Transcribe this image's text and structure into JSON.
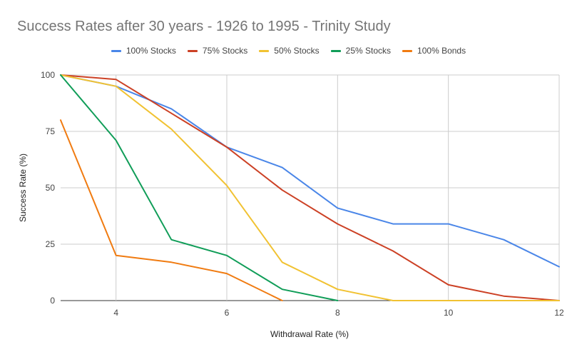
{
  "chart_data": {
    "type": "line",
    "title": "Success Rates after 30 years - 1926 to 1995 - Trinity Study",
    "xlabel": "Withdrawal Rate (%)",
    "ylabel": "Success Rate (%)",
    "xlim": [
      3,
      12
    ],
    "ylim": [
      0,
      100
    ],
    "x_ticks": [
      4,
      6,
      8,
      10,
      12
    ],
    "y_ticks": [
      0,
      25,
      50,
      75,
      100
    ],
    "grid": true,
    "legend_position": "top",
    "x": [
      3,
      4,
      5,
      6,
      7,
      8,
      9,
      10,
      11,
      12
    ],
    "series": [
      {
        "name": "100% Stocks",
        "color": "#4a86e8",
        "values": [
          100,
          95,
          85,
          68,
          59,
          41,
          34,
          34,
          27,
          15
        ]
      },
      {
        "name": "75% Stocks",
        "color": "#cc4125",
        "values": [
          100,
          98,
          83,
          68,
          49,
          34,
          22,
          7,
          2,
          0
        ]
      },
      {
        "name": "50% Stocks",
        "color": "#f1c232",
        "values": [
          100,
          95,
          76,
          51,
          17,
          5,
          0,
          0,
          0,
          0
        ]
      },
      {
        "name": "25% Stocks",
        "color": "#109d58",
        "values": [
          100,
          71,
          27,
          20,
          5,
          0,
          null,
          null,
          null,
          null
        ]
      },
      {
        "name": "100% Bonds",
        "color": "#f07b11",
        "values": [
          80,
          20,
          17,
          12,
          0,
          null,
          null,
          null,
          null,
          null
        ]
      }
    ]
  }
}
